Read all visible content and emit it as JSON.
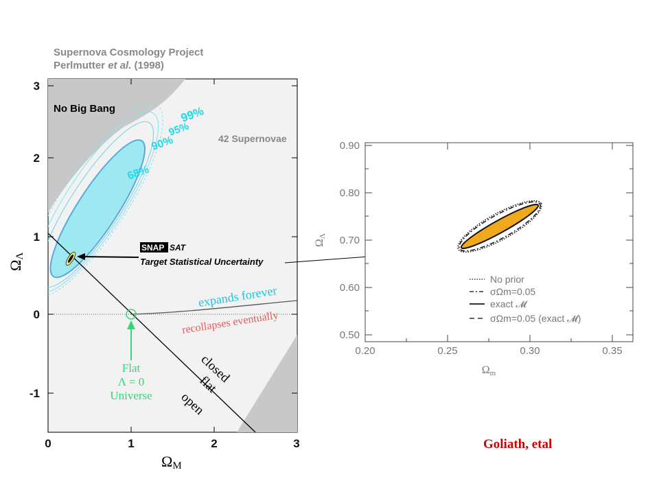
{
  "colors": {
    "contour_fill": "#9ee8f2",
    "contour_inner": "#3fd0e0",
    "contour_line": "#6ab0e0",
    "label_cyan": "#22d8e6",
    "forever": "#20c4e0",
    "recollapse": "#e65a5a",
    "flat_green": "#33d67a",
    "nobang_gray": "#c8c8c8",
    "orange": "#f0a81c",
    "credit": "#cc0000"
  },
  "left": {
    "title_line1": "Supernova Cosmology Project",
    "title_line2_pre": "Perlmutter ",
    "title_line2_em": "et al.",
    "title_line2_post": " (1998)",
    "no_big_bang": "No Big Bang",
    "n_supernovae": "42 Supernovae",
    "contour_labels": [
      "99%",
      "95%",
      "90%",
      "68%"
    ],
    "snap": "SNAP",
    "sat": "SAT",
    "target": "Target Statistical Uncertainty",
    "expands": "expands forever",
    "recollapses": "recollapses eventually",
    "closed": "closed",
    "flat": "flat",
    "open": "open",
    "flat_universe": [
      "Flat",
      "Λ = 0",
      "Universe"
    ],
    "xlabel": "Ω",
    "xlabel_sub": "M",
    "ylabel": "Ω",
    "ylabel_sub": "Λ",
    "xticks": [
      "0",
      "1",
      "2",
      "3"
    ],
    "yticks": [
      "3",
      "2",
      "1",
      "0",
      "-1"
    ]
  },
  "right": {
    "xlabel": "Ω",
    "xlabel_sub": "m",
    "ylabel": "Ω",
    "ylabel_sub": "Λ",
    "xticks": [
      "0.20",
      "0.25",
      "0.30",
      "0.35"
    ],
    "yticks": [
      "0.90",
      "0.80",
      "0.70",
      "0.60",
      "0.50"
    ],
    "legend": [
      {
        "symbol": "....",
        "text": "No prior"
      },
      {
        "symbol": "-·-·",
        "text": "σΩm=0.05"
      },
      {
        "symbol": "——",
        "text": "exact 𝓜"
      },
      {
        "symbol": "– –",
        "text": "σΩm=0.05 (exact 𝓜)"
      }
    ]
  },
  "credit": "Goliath, etal",
  "chart_data": [
    {
      "type": "scatter",
      "title": "Supernova Cosmology Project Perlmutter et al. (1998)",
      "xlabel": "ΩM",
      "ylabel": "ΩΛ",
      "xlim": [
        0,
        3
      ],
      "ylim": [
        -1.5,
        3.1
      ],
      "grid": false,
      "contours": {
        "levels": [
          "68%",
          "90%",
          "95%",
          "99%"
        ],
        "center": [
          0.72,
          1.1
        ]
      },
      "snap_constraint": {
        "center": [
          0.28,
          0.72
        ]
      },
      "lines": [
        {
          "name": "flat",
          "points": [
            [
              0,
              1
            ],
            [
              2.5,
              -1.5
            ]
          ]
        },
        {
          "name": "expands forever / recollapses eventually",
          "points": [
            [
              1,
              0
            ],
            [
              3,
              0.18
            ]
          ]
        }
      ],
      "annotations": [
        "No Big Bang",
        "42 Supernovae",
        "expands forever",
        "recollapses eventually",
        "closed",
        "flat",
        "open",
        "Flat Λ = 0 Universe",
        "Target Statistical Uncertainty"
      ]
    },
    {
      "type": "scatter",
      "xlabel": "Ωm",
      "ylabel": "ΩΛ",
      "xlim": [
        0.2,
        0.35
      ],
      "ylim": [
        0.49,
        0.91
      ],
      "series": [
        {
          "name": "No prior",
          "style": "dotted",
          "ellipse": {
            "center": [
              0.28,
              0.72
            ],
            "x_range": [
              0.256,
              0.305
            ],
            "y_range": [
              0.665,
              0.765
            ]
          }
        },
        {
          "name": "σΩm=0.05",
          "style": "dash-dot",
          "ellipse": {
            "center": [
              0.28,
              0.72
            ],
            "x_range": [
              0.256,
              0.305
            ],
            "y_range": [
              0.665,
              0.765
            ]
          }
        },
        {
          "name": "exact 𝓜",
          "style": "solid",
          "ellipse": {
            "center": [
              0.28,
              0.718
            ],
            "x_range": [
              0.258,
              0.302
            ],
            "y_range": [
              0.68,
              0.758
            ]
          }
        },
        {
          "name": "σΩm=0.05 (exact 𝓜)",
          "style": "dashed",
          "ellipse": {
            "center": [
              0.28,
              0.718
            ],
            "x_range": [
              0.258,
              0.302
            ],
            "y_range": [
              0.68,
              0.758
            ]
          }
        }
      ]
    }
  ]
}
